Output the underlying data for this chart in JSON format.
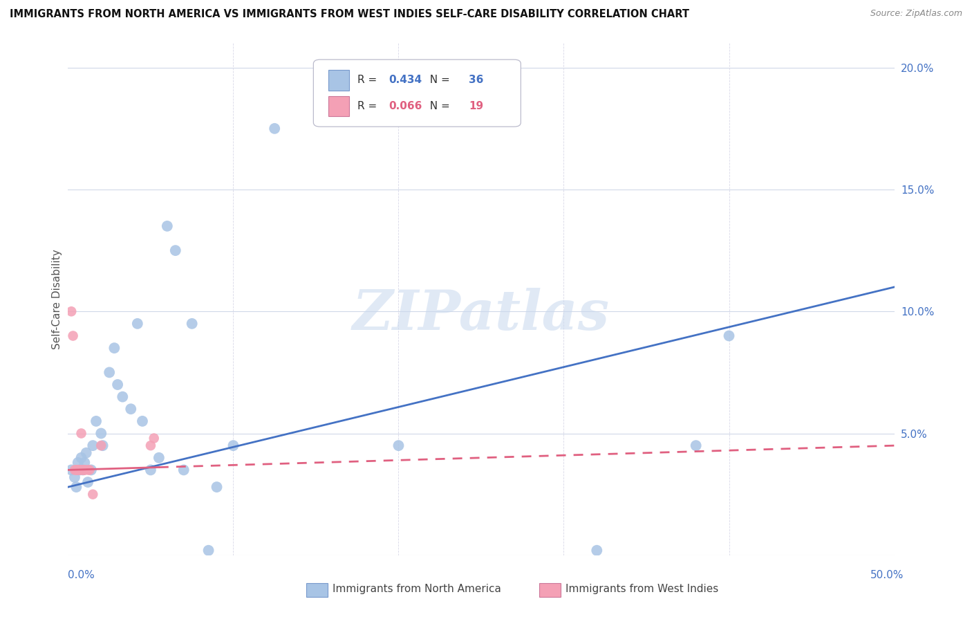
{
  "title": "IMMIGRANTS FROM NORTH AMERICA VS IMMIGRANTS FROM WEST INDIES SELF-CARE DISABILITY CORRELATION CHART",
  "source": "Source: ZipAtlas.com",
  "ylabel": "Self-Care Disability",
  "xlim": [
    0.0,
    50.0
  ],
  "ylim": [
    0.0,
    21.0
  ],
  "blue_r": 0.434,
  "blue_n": 36,
  "pink_r": 0.066,
  "pink_n": 19,
  "blue_color": "#a8c4e5",
  "pink_color": "#f4a0b5",
  "blue_line_color": "#4472c4",
  "pink_line_color": "#e06080",
  "watermark": "ZIPatlas",
  "blue_x": [
    0.2,
    0.4,
    0.5,
    0.6,
    0.7,
    0.8,
    0.9,
    1.0,
    1.1,
    1.2,
    1.4,
    1.5,
    1.7,
    2.0,
    2.1,
    2.5,
    2.8,
    3.0,
    3.3,
    3.8,
    4.2,
    4.5,
    5.0,
    5.5,
    6.0,
    6.5,
    7.0,
    7.5,
    8.5,
    9.0,
    10.0,
    12.5,
    20.0,
    32.0,
    38.0,
    40.0
  ],
  "blue_y": [
    3.5,
    3.2,
    2.8,
    3.8,
    3.5,
    4.0,
    3.5,
    3.8,
    4.2,
    3.0,
    3.5,
    4.5,
    5.5,
    5.0,
    4.5,
    7.5,
    8.5,
    7.0,
    6.5,
    6.0,
    9.5,
    5.5,
    3.5,
    4.0,
    13.5,
    12.5,
    3.5,
    9.5,
    0.2,
    2.8,
    4.5,
    17.5,
    4.5,
    0.2,
    4.5,
    9.0
  ],
  "pink_x": [
    0.2,
    0.3,
    0.4,
    0.5,
    0.6,
    0.7,
    0.8,
    0.9,
    1.0,
    1.2,
    1.5,
    2.0,
    5.0,
    5.2,
    0.5,
    0.6,
    0.8,
    1.0,
    1.3
  ],
  "pink_y": [
    10.0,
    9.0,
    3.5,
    3.5,
    3.5,
    3.5,
    5.0,
    3.5,
    3.5,
    3.5,
    2.5,
    4.5,
    4.5,
    4.8,
    3.5,
    3.5,
    3.5,
    3.5,
    3.5
  ],
  "blue_line_x": [
    0.0,
    50.0
  ],
  "blue_line_y_start": 2.8,
  "blue_line_y_end": 11.0,
  "pink_line_x": [
    0.0,
    50.0
  ],
  "pink_line_y_start": 3.5,
  "pink_line_y_end": 4.5,
  "pink_dash_start_x": 5.5
}
